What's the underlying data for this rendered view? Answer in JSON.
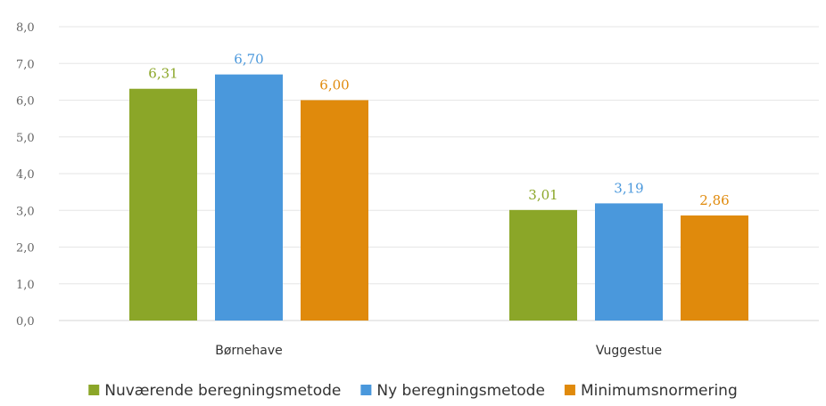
{
  "chart_data": {
    "type": "bar",
    "categories": [
      "Børnehave",
      "Vuggestue"
    ],
    "series": [
      {
        "name": "Nuværende beregningsmetode",
        "values": [
          6.31,
          3.01
        ],
        "labels": [
          "6,31",
          "3,01"
        ]
      },
      {
        "name": "Ny beregningsmetode",
        "values": [
          6.7,
          3.19
        ],
        "labels": [
          "6,70",
          "3,19"
        ]
      },
      {
        "name": "Minimumsnormering",
        "values": [
          6.0,
          2.86
        ],
        "labels": [
          "6,00",
          "2,86"
        ]
      }
    ],
    "colors": [
      "#8ba628",
      "#4a98dc",
      "#e08a0c"
    ],
    "label_colors": [
      "#8ba628",
      "#4a98dc",
      "#e08a0c"
    ],
    "yticks": [
      0,
      1,
      2,
      3,
      4,
      5,
      6,
      7,
      8
    ],
    "ytick_labels": [
      "0,0",
      "1,0",
      "2,0",
      "3,0",
      "4,0",
      "5,0",
      "6,0",
      "7,0",
      "8,0"
    ],
    "ylim": [
      0,
      8
    ],
    "grid": true,
    "legend_position": "bottom"
  }
}
